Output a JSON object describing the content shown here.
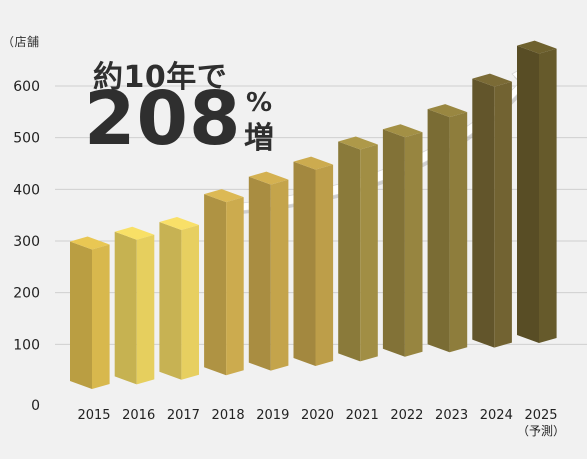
{
  "chart_data": {
    "type": "bar",
    "unit_label": "（店舗",
    "headline": {
      "prefix": "約10年で",
      "number": "208",
      "percent_sign": "%",
      "suffix": "増"
    },
    "categories": [
      "2015",
      "2016",
      "2017",
      "2018",
      "2019",
      "2020",
      "2021",
      "2022",
      "2023",
      "2024",
      "2025"
    ],
    "category_note": {
      "index": 10,
      "text": "（予測）"
    },
    "values": [
      270,
      280,
      290,
      335,
      360,
      380,
      410,
      425,
      455,
      505,
      560
    ],
    "yticks": [
      0,
      100,
      200,
      300,
      400,
      500,
      600
    ],
    "ylim": [
      0,
      600
    ],
    "grid": true,
    "bar_colors": [
      "#d8b84d",
      "#e6cf5e",
      "#e7cf60",
      "#ccab4e",
      "#c4a44b",
      "#bd9e49",
      "#a18e44",
      "#978540",
      "#8e7d3c",
      "#726332",
      "#665a2b"
    ],
    "arrow_color": "#ffffff"
  }
}
